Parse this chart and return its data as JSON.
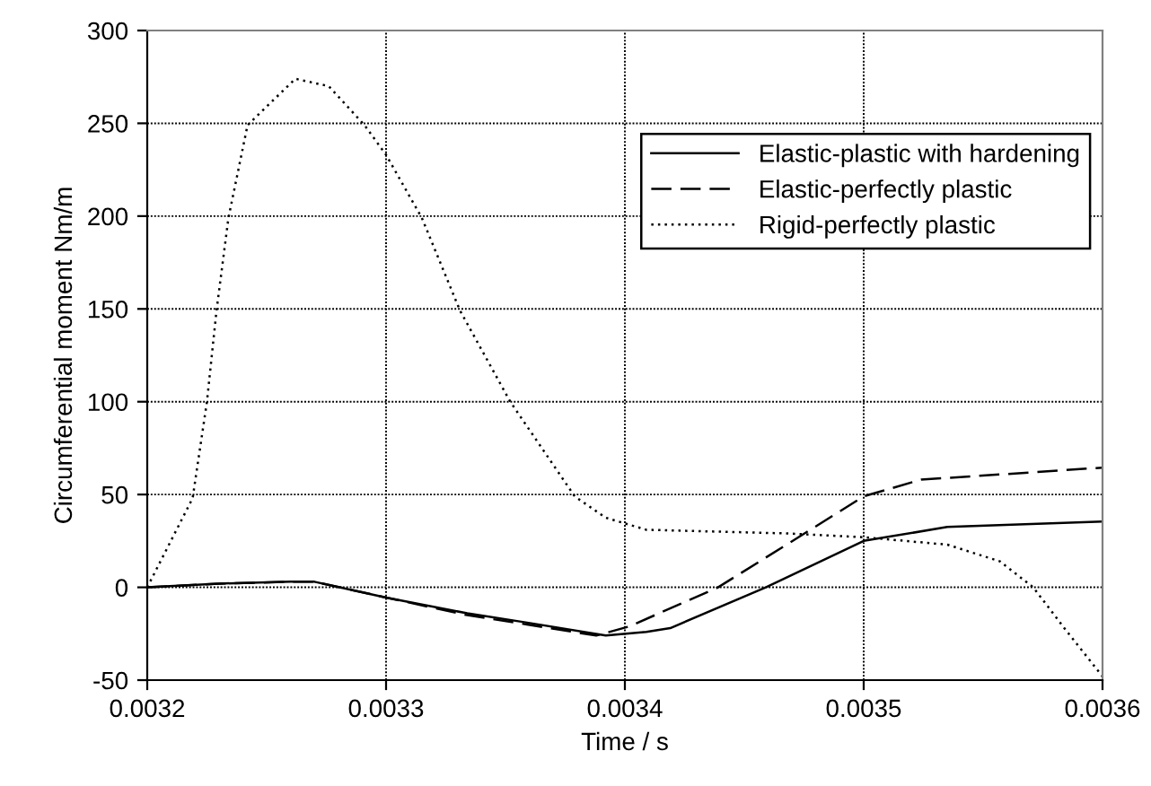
{
  "chart_data": {
    "type": "line",
    "xlabel": "Time / s",
    "ylabel": "Circumferential moment Nm/m",
    "xlim": [
      0.0032,
      0.0036
    ],
    "ylim": [
      -50,
      300
    ],
    "xticks": [
      {
        "value": 0.0032,
        "label": "0.0032"
      },
      {
        "value": 0.0033,
        "label": "0.0033"
      },
      {
        "value": 0.0034,
        "label": "0.0034"
      },
      {
        "value": 0.0035,
        "label": "0.0035"
      },
      {
        "value": 0.0036,
        "label": "0.0036"
      }
    ],
    "yticks": [
      -50,
      0,
      50,
      100,
      150,
      200,
      250,
      300
    ],
    "grid": true,
    "legend": "top right",
    "marker": "none",
    "series": [
      {
        "name": "Elastic-plastic with hardening",
        "color": "#000000",
        "line_style": "solid",
        "x": [
          0.0032,
          0.00323,
          0.00326,
          0.00327,
          0.0033,
          0.003334,
          0.003359,
          0.003392,
          0.003409,
          0.003419,
          0.003459,
          0.0035,
          0.003535,
          0.0036
        ],
        "values": [
          0,
          2,
          3,
          3,
          -5.5,
          -14,
          -19,
          -26,
          -24,
          -22,
          0,
          25,
          32.5,
          35.5
        ]
      },
      {
        "name": "Elastic-perfectly plastic",
        "color": "#000000",
        "line_style": "dashed",
        "x": [
          0.0032,
          0.00323,
          0.00326,
          0.00327,
          0.0033,
          0.003334,
          0.003359,
          0.003388,
          0.003402,
          0.003439,
          0.003469,
          0.0035,
          0.003524,
          0.0036
        ],
        "values": [
          0,
          2,
          3,
          3,
          -5.5,
          -15,
          -20,
          -26,
          -21,
          0,
          24,
          49,
          58,
          64.5
        ]
      },
      {
        "name": "Rigid-perfectly plastic",
        "color": "#000000",
        "line_style": "dotted",
        "x": [
          0.0032,
          0.003219,
          0.003225,
          0.003229,
          0.003234,
          0.003242,
          0.003262,
          0.003276,
          0.003291,
          0.0033,
          0.003315,
          0.003331,
          0.003352,
          0.003379,
          0.003392,
          0.003409,
          0.003469,
          0.0035,
          0.003535,
          0.003557,
          0.003571,
          0.003584,
          0.0036
        ],
        "values": [
          0,
          48,
          100,
          149,
          199,
          249,
          274,
          270,
          249,
          233,
          199,
          149,
          100,
          49,
          37.5,
          31,
          29,
          27,
          23,
          14,
          0,
          -22,
          -48
        ]
      }
    ]
  }
}
